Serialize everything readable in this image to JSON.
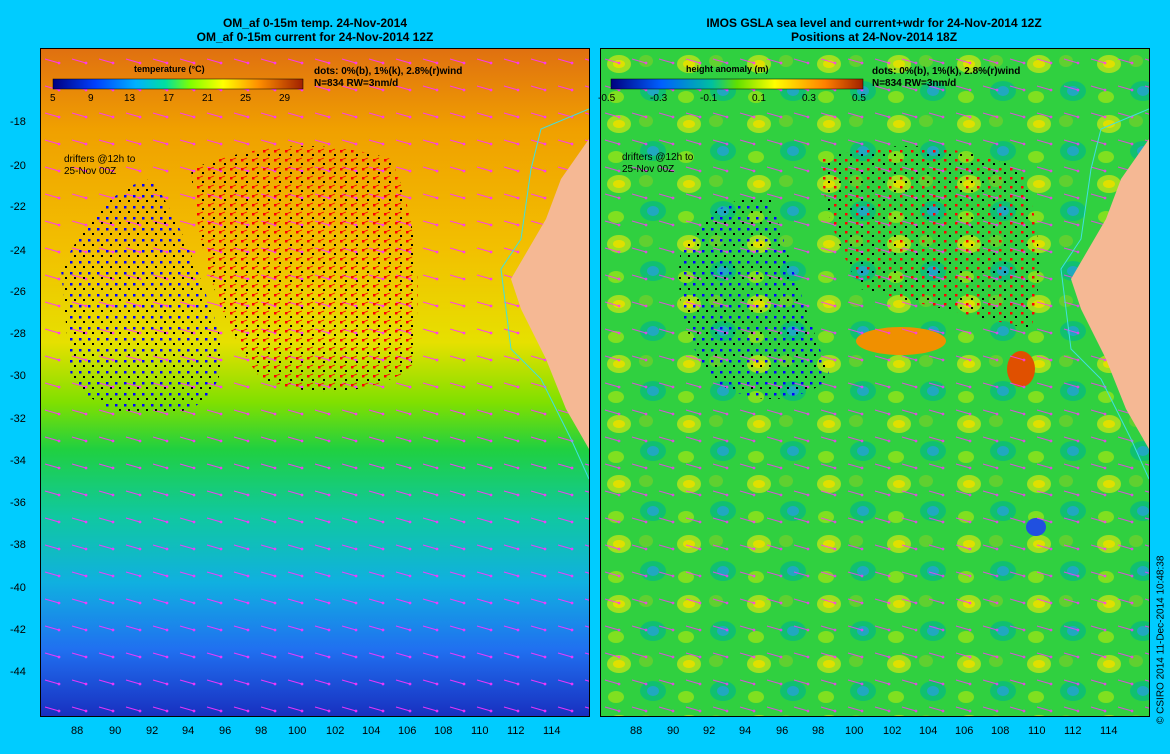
{
  "left_panel": {
    "title_line1": "OM_af 0-15m temp. 24-Nov-2014",
    "title_line2": "OM_af 0-15m current for 24-Nov-2014 12Z",
    "colorbar_title": "temperature (°C)",
    "colorbar_ticks": [
      "5",
      "9",
      "13",
      "17",
      "21",
      "25",
      "29"
    ],
    "legend_line1": "dots: 0%(b), 1%(k), 2.8%(r)wind",
    "legend_line2": "N=834 RW=3nm/d",
    "drifter_line1": "drifters @12h to",
    "drifter_line2": "25-Nov 00Z"
  },
  "right_panel": {
    "title_line1": "IMOS GSLA sea level and current+wdr for 24-Nov-2014 12Z",
    "title_line2": "Positions at 24-Nov-2014 18Z",
    "colorbar_title": "height anomaly (m)",
    "colorbar_ticks": [
      "-0.5",
      "-0.3",
      "-0.1",
      "0.1",
      "0.3",
      "0.5"
    ],
    "legend_line1": "dots: 0%(b), 1%(k), 2.8%(r)wind",
    "legend_line2": "N=834 RW=3nm/d",
    "drifter_line1": "drifters @12h to",
    "drifter_line2": "25-Nov 00Z"
  },
  "y_ticks": [
    "-18",
    "-20",
    "-22",
    "-24",
    "-26",
    "-28",
    "-30",
    "-32",
    "-34",
    "-36",
    "-38",
    "-40",
    "-42",
    "-44"
  ],
  "x_ticks_left": [
    "88",
    "90",
    "92",
    "94",
    "96",
    "98",
    "100",
    "102",
    "104",
    "106",
    "108",
    "110",
    "112",
    "114"
  ],
  "x_ticks_right": [
    "88",
    "90",
    "92",
    "94",
    "96",
    "98",
    "100",
    "102",
    "104",
    "106",
    "108",
    "110",
    "112",
    "114"
  ],
  "copyright": "© CSIRO 2014   11-Dec-2014 10:48:38",
  "colors": {
    "background": "#00ccff",
    "land": "#f5b894",
    "coast": "#40e0e0",
    "arrow": "#ff33ff",
    "drifter_blue": "#0000ff",
    "drifter_black": "#000000",
    "drifter_red": "#ff0000"
  }
}
